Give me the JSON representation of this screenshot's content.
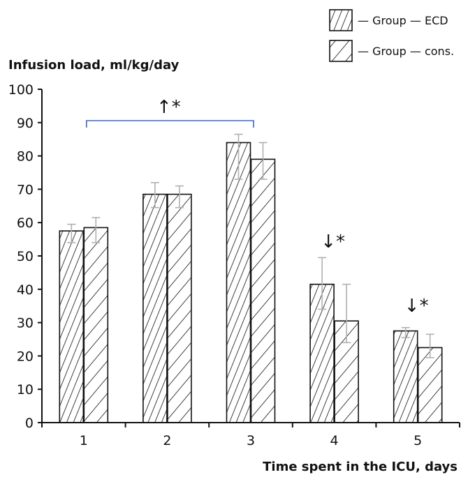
{
  "chart_data": {
    "type": "bar",
    "ylabel": "Infusion load, ml/kg/day",
    "xlabel": "Time spent in the ICU, days",
    "categories": [
      "1",
      "2",
      "3",
      "4",
      "5"
    ],
    "ylim": [
      0,
      100
    ],
    "yticks": [
      0,
      10,
      20,
      30,
      40,
      50,
      60,
      70,
      80,
      90,
      100
    ],
    "series": [
      {
        "name": "— Group — ECD",
        "pattern": "dense-hatch",
        "values": [
          57.5,
          68.5,
          84,
          41.5,
          27.5
        ],
        "error_low": [
          54,
          64.5,
          73,
          34,
          25.5
        ],
        "error_high": [
          59.5,
          72,
          86.5,
          49.5,
          28.5
        ]
      },
      {
        "name": "— Group — cons.",
        "pattern": "sparse-hatch",
        "values": [
          58.5,
          68.5,
          79,
          30.5,
          22.5
        ],
        "error_low": [
          54,
          64.5,
          73,
          24,
          19.5
        ],
        "error_high": [
          61.5,
          71,
          84,
          41.5,
          26.5
        ]
      }
    ],
    "annotations": [
      {
        "text": "↑*",
        "category_index": 2,
        "bracket_from": 0,
        "bracket_to": 2
      },
      {
        "text": "↓*",
        "category_index": 3
      },
      {
        "text": "↓*",
        "category_index": 4
      }
    ],
    "bracket_color": "#3a67c8",
    "error_bar_color": "#b0b0b0",
    "legend_position": "top-right",
    "grid": false
  }
}
